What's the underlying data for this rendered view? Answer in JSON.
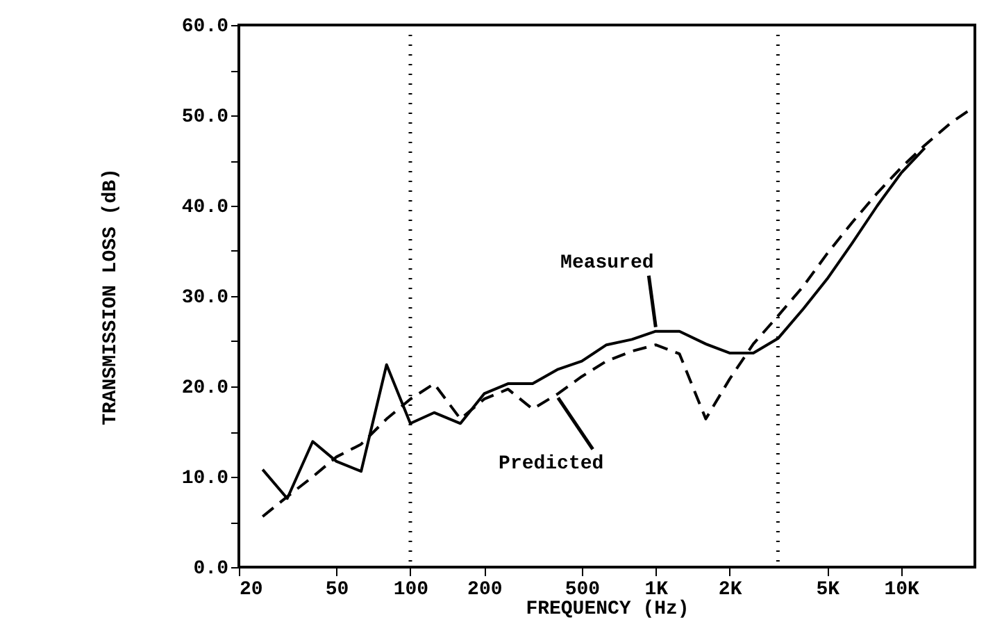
{
  "chart_data": {
    "type": "line",
    "xlabel": "FREQUENCY (Hz)",
    "ylabel": "TRANSMISSION  LOSS  (dB)",
    "log": "x",
    "grid": false,
    "marker": "none",
    "xlim": [
      20,
      20000
    ],
    "xticks": [
      20,
      50,
      100,
      200,
      500,
      {
        "value": 1000,
        "label": "1K"
      },
      {
        "value": 2000,
        "label": "2K"
      },
      {
        "value": 5000,
        "label": "5K"
      },
      {
        "value": 10000,
        "label": "10K"
      }
    ],
    "ylim": [
      0,
      60
    ],
    "yticks": [
      {
        "value": 0,
        "label": "0.0"
      },
      {
        "value": 5,
        "label": null
      },
      {
        "value": 10,
        "label": "10.0"
      },
      {
        "value": 15,
        "label": null
      },
      {
        "value": 20,
        "label": "20.0"
      },
      {
        "value": 25,
        "label": null
      },
      {
        "value": 30,
        "label": "30.0"
      },
      {
        "value": 35,
        "label": null
      },
      {
        "value": 40,
        "label": "40.0"
      },
      {
        "value": 45,
        "label": null
      },
      {
        "value": 50,
        "label": "50.0"
      },
      {
        "value": 55,
        "label": null
      },
      {
        "value": 60,
        "label": "60.0"
      }
    ],
    "series": [
      {
        "color": "#000000",
        "line_style": "solid",
        "x": [
          25,
          31.5,
          40,
          50,
          63,
          80,
          100,
          125,
          160,
          200,
          250,
          315,
          400,
          500,
          630,
          800,
          1000,
          1250,
          1600,
          2000,
          2500,
          3150,
          4000,
          5000,
          6300,
          8000,
          10000,
          12500
        ],
        "values": [
          10.8,
          7.6,
          13.9,
          11.7,
          10.6,
          22.4,
          15.9,
          17.1,
          15.9,
          19.2,
          20.3,
          20.3,
          21.9,
          22.8,
          24.6,
          25.2,
          26.1,
          26.1,
          24.7,
          23.7,
          23.7,
          25.3,
          28.6,
          31.9,
          35.8,
          40.0,
          43.6,
          46.4
        ]
      },
      {
        "color": "#000000",
        "line_style": "dashed",
        "x": [
          25,
          31.5,
          40,
          50,
          63,
          80,
          100,
          125,
          160,
          200,
          250,
          315,
          400,
          500,
          630,
          800,
          1000,
          1250,
          1600,
          2000,
          2500,
          3150,
          4000,
          5000,
          6300,
          8000,
          10000,
          12500,
          16000,
          20000
        ],
        "values": [
          5.6,
          7.8,
          10.0,
          12.2,
          13.6,
          16.4,
          18.6,
          20.3,
          16.4,
          18.6,
          19.7,
          17.5,
          19.2,
          21.1,
          22.8,
          23.9,
          24.6,
          23.6,
          16.4,
          20.8,
          24.7,
          27.8,
          31.1,
          34.7,
          38.1,
          41.4,
          44.2,
          46.7,
          49.2,
          51.0
        ]
      }
    ],
    "ref_lines": [
      {
        "axis": "x",
        "value": 100,
        "line_style": "dotted"
      },
      {
        "axis": "x",
        "value": 3150,
        "line_style": "dotted"
      }
    ],
    "annotations": [
      {
        "text": "Measured",
        "x": 1000,
        "y": 26.1
      },
      {
        "text": "Predicted",
        "x": 400,
        "y": 19.2
      }
    ]
  }
}
